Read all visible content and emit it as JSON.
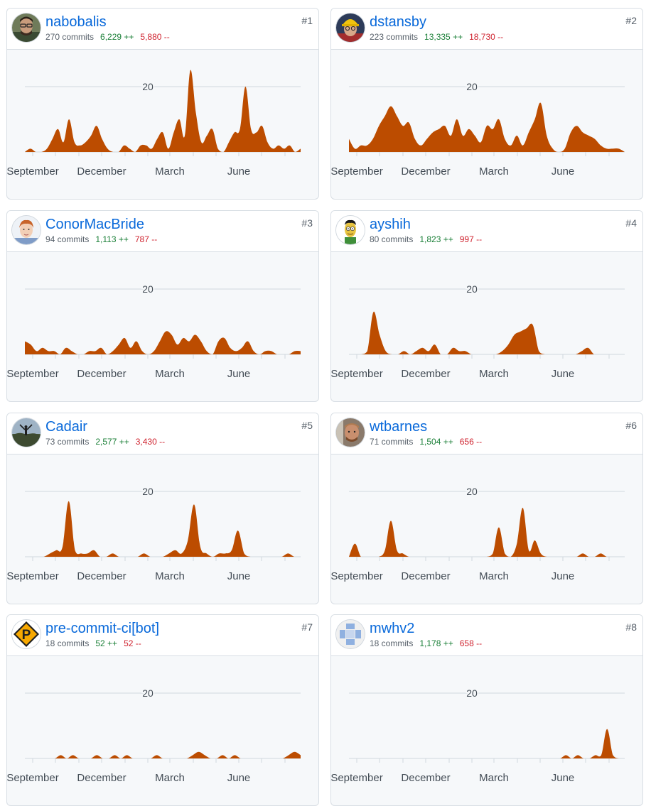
{
  "contributors": [
    {
      "rank": "#1",
      "username": "nabobalis",
      "commits_text": "270 commits",
      "additions_text": "6,229 ++",
      "deletions_text": "5,880 --",
      "avatar": "avatar-photo-person-glasses"
    },
    {
      "rank": "#2",
      "username": "dstansby",
      "commits_text": "223 commits",
      "additions_text": "13,335 ++",
      "deletions_text": "18,730 --",
      "avatar": "avatar-photo-yellow-hat"
    },
    {
      "rank": "#3",
      "username": "ConorMacBride",
      "commits_text": "94 commits",
      "additions_text": "1,113 ++",
      "deletions_text": "787 --",
      "avatar": "avatar-cartoon-redhead"
    },
    {
      "rank": "#4",
      "username": "ayshih",
      "commits_text": "80 commits",
      "additions_text": "1,823 ++",
      "deletions_text": "997 --",
      "avatar": "avatar-cartoon-simpsons"
    },
    {
      "rank": "#5",
      "username": "Cadair",
      "commits_text": "73 commits",
      "additions_text": "2,577 ++",
      "deletions_text": "3,430 --",
      "avatar": "avatar-photo-landscape"
    },
    {
      "rank": "#6",
      "username": "wtbarnes",
      "commits_text": "71 commits",
      "additions_text": "1,504 ++",
      "deletions_text": "656 --",
      "avatar": "avatar-photo-selfie"
    },
    {
      "rank": "#7",
      "username": "pre-commit-ci[bot]",
      "commits_text": "18 commits",
      "additions_text": "52 ++",
      "deletions_text": "52 --",
      "avatar": "avatar-precommit-logo"
    },
    {
      "rank": "#8",
      "username": "mwhv2",
      "commits_text": "18 commits",
      "additions_text": "1,178 ++",
      "deletions_text": "658 --",
      "avatar": "avatar-identicon-blue"
    }
  ],
  "colors": {
    "area_fill": "#bc4c00",
    "link": "#0969da",
    "additions": "#1a7f37",
    "deletions": "#cf222e",
    "muted": "#57606a",
    "grid": "#d0d7de"
  },
  "chart_data": [
    {
      "type": "area",
      "series": [
        {
          "values": [
            0,
            1,
            0,
            0,
            1,
            4,
            7,
            3,
            10,
            3,
            2,
            3,
            5,
            8,
            4,
            1,
            0,
            0,
            2,
            1,
            0,
            2,
            2,
            1,
            4,
            6,
            1,
            6,
            10,
            5,
            25,
            12,
            3,
            5,
            7,
            1,
            0,
            3,
            6,
            7,
            20,
            7,
            6,
            8,
            3,
            1,
            2,
            1,
            2,
            0,
            1
          ]
        }
      ],
      "x_tick_labels": [
        "September",
        "December",
        "March",
        "June"
      ],
      "y_tick_labels": [
        "20"
      ],
      "ylim": [
        0,
        27
      ]
    },
    {
      "type": "area",
      "series": [
        {
          "values": [
            4,
            1,
            2,
            2,
            4,
            8,
            11,
            14,
            11,
            8,
            9,
            4,
            2,
            4,
            6,
            7,
            8,
            5,
            10,
            5,
            7,
            5,
            3,
            8,
            7,
            10,
            4,
            2,
            5,
            2,
            6,
            10,
            15,
            5,
            1,
            0,
            1,
            6,
            8,
            6,
            5,
            4,
            2,
            1,
            1,
            1,
            0
          ]
        }
      ],
      "x_tick_labels": [
        "September",
        "December",
        "March",
        "June"
      ],
      "y_tick_labels": [
        "20"
      ],
      "ylim": [
        0,
        27
      ]
    },
    {
      "type": "area",
      "series": [
        {
          "values": [
            4,
            3,
            1,
            2,
            1,
            1,
            0,
            2,
            1,
            0,
            0,
            1,
            1,
            2,
            0,
            1,
            3,
            5,
            2,
            4,
            1,
            0,
            1,
            4,
            7,
            6,
            3,
            5,
            4,
            6,
            4,
            1,
            0,
            4,
            5,
            2,
            1,
            2,
            4,
            1,
            0,
            1,
            1,
            0,
            0,
            0,
            1,
            1
          ]
        }
      ],
      "x_tick_labels": [
        "September",
        "December",
        "March",
        "June"
      ],
      "y_tick_labels": [
        "20"
      ],
      "ylim": [
        0,
        27
      ]
    },
    {
      "type": "area",
      "series": [
        {
          "values": [
            0,
            0,
            0,
            1,
            13,
            6,
            1,
            0,
            0,
            1,
            0,
            1,
            2,
            1,
            3,
            0,
            0,
            2,
            1,
            1,
            0,
            0,
            0,
            0,
            0,
            1,
            3,
            6,
            7,
            8,
            9,
            1,
            0,
            0,
            0,
            0,
            0,
            0,
            1,
            2,
            0,
            0,
            0,
            0,
            0,
            0
          ]
        }
      ],
      "x_tick_labels": [
        "September",
        "December",
        "March",
        "June"
      ],
      "y_tick_labels": [
        "20"
      ],
      "ylim": [
        0,
        27
      ]
    },
    {
      "type": "area",
      "series": [
        {
          "values": [
            0,
            0,
            0,
            0,
            1,
            2,
            3,
            17,
            2,
            1,
            1,
            2,
            0,
            0,
            1,
            0,
            0,
            0,
            0,
            1,
            0,
            0,
            0,
            1,
            2,
            1,
            5,
            16,
            3,
            1,
            0,
            1,
            1,
            2,
            8,
            1,
            0,
            0,
            0,
            0,
            0,
            0,
            1,
            0,
            0
          ]
        }
      ],
      "x_tick_labels": [
        "September",
        "December",
        "March",
        "June"
      ],
      "y_tick_labels": [
        "20"
      ],
      "ylim": [
        0,
        27
      ]
    },
    {
      "type": "area",
      "series": [
        {
          "values": [
            0,
            4,
            0,
            0,
            0,
            0,
            2,
            11,
            2,
            1,
            0,
            0,
            0,
            0,
            0,
            0,
            0,
            0,
            0,
            0,
            0,
            0,
            0,
            0,
            1,
            9,
            1,
            0,
            4,
            15,
            2,
            5,
            1,
            0,
            0,
            0,
            0,
            0,
            0,
            1,
            0,
            0,
            1,
            0,
            0,
            0,
            0
          ]
        }
      ],
      "x_tick_labels": [
        "September",
        "December",
        "March",
        "June"
      ],
      "y_tick_labels": [
        "20"
      ],
      "ylim": [
        0,
        27
      ]
    },
    {
      "type": "area",
      "series": [
        {
          "values": [
            0,
            0,
            0,
            0,
            0,
            0,
            1,
            0,
            1,
            0,
            0,
            0,
            1,
            0,
            0,
            1,
            0,
            1,
            0,
            0,
            0,
            0,
            1,
            0,
            0,
            0,
            0,
            0,
            1,
            2,
            1,
            0,
            0,
            1,
            0,
            1,
            0,
            0,
            0,
            0,
            0,
            0,
            0,
            0,
            1,
            2,
            1
          ]
        }
      ],
      "x_tick_labels": [
        "September",
        "December",
        "March",
        "June"
      ],
      "y_tick_labels": [
        "20"
      ],
      "ylim": [
        0,
        27
      ]
    },
    {
      "type": "area",
      "series": [
        {
          "values": [
            0,
            0,
            0,
            0,
            0,
            0,
            0,
            0,
            0,
            0,
            0,
            0,
            0,
            0,
            0,
            0,
            0,
            0,
            0,
            0,
            0,
            0,
            0,
            0,
            0,
            0,
            0,
            0,
            0,
            0,
            0,
            0,
            0,
            0,
            0,
            0,
            0,
            1,
            0,
            1,
            0,
            0,
            1,
            1,
            9,
            1,
            0,
            0
          ]
        }
      ],
      "x_tick_labels": [
        "September",
        "December",
        "March",
        "June"
      ],
      "y_tick_labels": [
        "20"
      ],
      "ylim": [
        0,
        27
      ]
    }
  ]
}
